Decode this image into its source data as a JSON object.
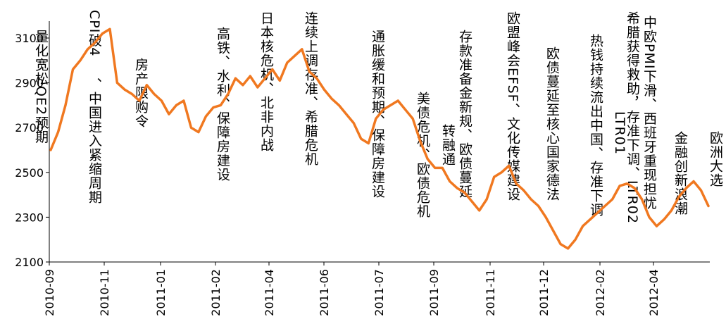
{
  "chart_data": {
    "type": "line",
    "title": "",
    "xlabel": "",
    "ylabel": "",
    "ylim": [
      2100,
      3150
    ],
    "y_ticks": [
      "2100",
      "2300",
      "2500",
      "2700",
      "2900",
      "3100"
    ],
    "y_tick_values": [
      2100,
      2300,
      2500,
      2700,
      2900,
      3100
    ],
    "x_ticks": [
      "2010-09",
      "2010-11",
      "2011-01",
      "2011-02",
      "2011-04",
      "2011-06",
      "2011-07",
      "2011-09",
      "2011-11",
      "2011-12",
      "2012-02",
      "2012-04"
    ],
    "grid": false,
    "line_color": "#f07820",
    "x": [
      "2010-09",
      "2010-09",
      "2010-09",
      "2010-10",
      "2010-10",
      "2010-10",
      "2010-10",
      "2010-10",
      "2010-11",
      "2010-11",
      "2010-11",
      "2010-11",
      "2010-11",
      "2010-12",
      "2010-12",
      "2010-12",
      "2010-12",
      "2010-12",
      "2011-01",
      "2011-01",
      "2011-01",
      "2011-01",
      "2011-01",
      "2011-02",
      "2011-02",
      "2011-02",
      "2011-02",
      "2011-03",
      "2011-03",
      "2011-03",
      "2011-03",
      "2011-03",
      "2011-04",
      "2011-04",
      "2011-04",
      "2011-04",
      "2011-05",
      "2011-05",
      "2011-05",
      "2011-05",
      "2011-05",
      "2011-06",
      "2011-06",
      "2011-06",
      "2011-06",
      "2011-07",
      "2011-07",
      "2011-07",
      "2011-07",
      "2011-08",
      "2011-08",
      "2011-08",
      "2011-08",
      "2011-09",
      "2011-09",
      "2011-09",
      "2011-09",
      "2011-10",
      "2011-10",
      "2011-10",
      "2011-10",
      "2011-11",
      "2011-11",
      "2011-11",
      "2011-11",
      "2011-11",
      "2011-12",
      "2011-12",
      "2011-12",
      "2011-12",
      "2012-01",
      "2012-01",
      "2012-01",
      "2012-01",
      "2012-02",
      "2012-02",
      "2012-02",
      "2012-02",
      "2012-03",
      "2012-03",
      "2012-03",
      "2012-03",
      "2012-04",
      "2012-04",
      "2012-04",
      "2012-04",
      "2012-05",
      "2012-05",
      "2012-05",
      "2012-05"
    ],
    "values": [
      2600,
      2680,
      2800,
      2960,
      3000,
      3050,
      3080,
      3120,
      3140,
      2900,
      2870,
      2850,
      2820,
      2890,
      2850,
      2820,
      2760,
      2800,
      2820,
      2700,
      2680,
      2750,
      2790,
      2800,
      2850,
      2920,
      2890,
      2930,
      2880,
      2920,
      2960,
      2910,
      2990,
      3020,
      3050,
      2950,
      2920,
      2870,
      2830,
      2800,
      2760,
      2720,
      2650,
      2630,
      2740,
      2780,
      2800,
      2820,
      2780,
      2740,
      2640,
      2560,
      2520,
      2520,
      2460,
      2430,
      2410,
      2370,
      2330,
      2380,
      2480,
      2500,
      2530,
      2450,
      2420,
      2380,
      2350,
      2300,
      2240,
      2180,
      2160,
      2200,
      2260,
      2290,
      2320,
      2350,
      2380,
      2440,
      2450,
      2430,
      2380,
      2300,
      2260,
      2290,
      2330,
      2390,
      2430,
      2460,
      2420,
      2350
    ]
  },
  "annotations": [
    {
      "text": "量化宽松QE2预期"
    },
    {
      "text": "CPI破4"
    },
    {
      "text": "、中国进入紧缩周期"
    },
    {
      "text": "房产限购令"
    },
    {
      "text": "高铁、水利、保障房建设"
    },
    {
      "text": "日本核危机、北非内战"
    },
    {
      "text": "连续上调存准、希腊危机"
    },
    {
      "text": "通胀缓和预期、保障房建设"
    },
    {
      "text": "美债危机、欧债危机"
    },
    {
      "text": "转融通"
    },
    {
      "text": "存款准备金新规、欧债蔓延"
    },
    {
      "text": "欧盟峰会EFSF、文化传媒建设"
    },
    {
      "text": "欧债蔓延至核心国家德法"
    },
    {
      "text": "热钱持续流出中国、存准下调"
    },
    {
      "text": "LTR01"
    },
    {
      "text": "希腊获得救助，存准下调、LTR02"
    },
    {
      "text": "中欧PMI下滑、西班牙重现担忧"
    },
    {
      "text": "金融创新浪潮"
    },
    {
      "text": "欧洲大选"
    }
  ]
}
